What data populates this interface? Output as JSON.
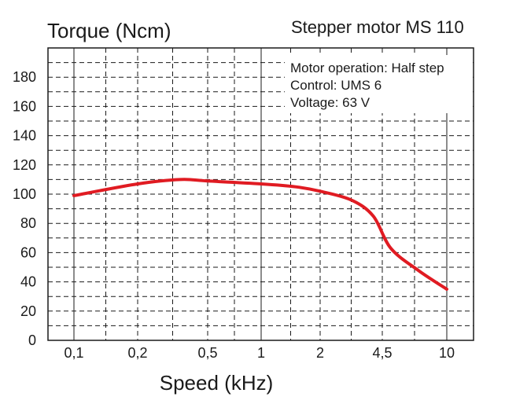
{
  "chart_data": {
    "type": "line",
    "title": "Stepper motor MS 110",
    "ylabel": "Torque (Ncm)",
    "xlabel": "Speed (kHz)",
    "x_ticks": [
      "0,1",
      "0,2",
      "0,5",
      "1",
      "2",
      "4,5",
      "10"
    ],
    "y_ticks": [
      0,
      20,
      40,
      60,
      80,
      100,
      120,
      140,
      160,
      180
    ],
    "ylim": [
      0,
      200
    ],
    "x_scale": "log",
    "grid": true,
    "annotations": [
      "Motor operation: Half step",
      "Control: UMS 6",
      "Voltage: 63 V"
    ],
    "series": [
      {
        "color": "#e01b22",
        "x": [
          0.1,
          0.2,
          0.35,
          0.5,
          1,
          1.5,
          2,
          3,
          4,
          5,
          7,
          10
        ],
        "y": [
          99,
          107,
          110,
          109,
          107,
          105,
          102,
          96,
          85,
          63,
          48,
          35
        ]
      }
    ]
  }
}
